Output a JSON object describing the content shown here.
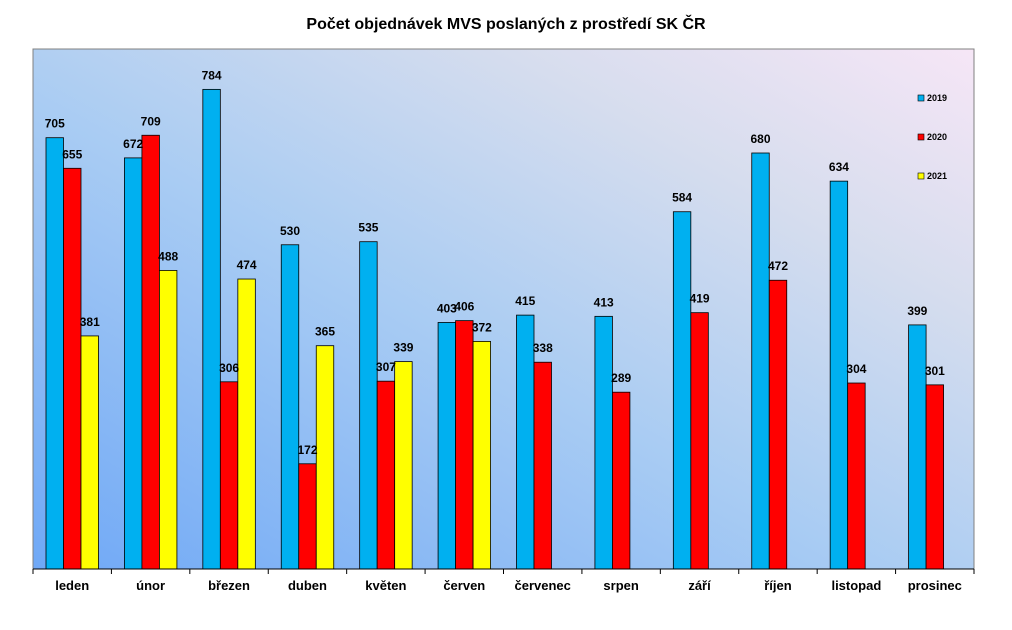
{
  "chart_data": {
    "type": "bar",
    "title": "Počet objednávek MVS poslaných z prostředí SK ČR",
    "xlabel": "",
    "ylabel": "",
    "ylim": [
      0,
      850
    ],
    "grid": false,
    "legend_position": "right",
    "categories": [
      "leden",
      "únor",
      "březen",
      "duben",
      "květen",
      "červen",
      "červenec",
      "srpen",
      "září",
      "říjen",
      "listopad",
      "prosinec"
    ],
    "series": [
      {
        "name": "2019",
        "color": "#00B0F0",
        "values": [
          705,
          672,
          784,
          530,
          535,
          403,
          415,
          413,
          584,
          680,
          634,
          399
        ]
      },
      {
        "name": "2020",
        "color": "#FF0000",
        "values": [
          655,
          709,
          306,
          172,
          307,
          406,
          338,
          289,
          419,
          472,
          304,
          301
        ]
      },
      {
        "name": "2021",
        "color": "#FFFF00",
        "values": [
          381,
          488,
          474,
          365,
          339,
          372,
          null,
          null,
          null,
          null,
          null,
          null
        ]
      }
    ]
  }
}
